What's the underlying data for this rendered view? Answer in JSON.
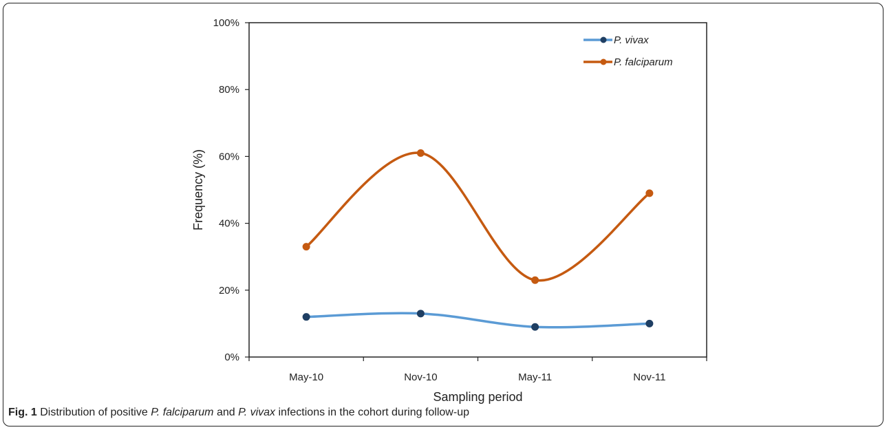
{
  "chart_data": {
    "type": "line",
    "smooth": true,
    "categories": [
      "May-10",
      "Nov-10",
      "May-11",
      "Nov-11"
    ],
    "xlabel": "Sampling period",
    "ylabel": "Frequency (%)",
    "ylim": [
      0,
      100
    ],
    "yticks": [
      "0%",
      "20%",
      "40%",
      "60%",
      "80%",
      "100%"
    ],
    "grid": false,
    "legend_position": "top-right",
    "series": [
      {
        "name": "P. vivax",
        "values": [
          12,
          13,
          9,
          10
        ],
        "color": "#5b9bd5",
        "marker_color": "#1f3f63"
      },
      {
        "name": "P. falciparum",
        "values": [
          33,
          61,
          23,
          49
        ],
        "color": "#c55a11",
        "marker_color": "#c55a11"
      }
    ]
  },
  "caption": {
    "label": "Fig. 1",
    "text_1": " Distribution of positive ",
    "species_1": "P. falciparum",
    "text_2": " and ",
    "species_2": "P. vivax",
    "text_3": " infections in the cohort during follow-up"
  }
}
